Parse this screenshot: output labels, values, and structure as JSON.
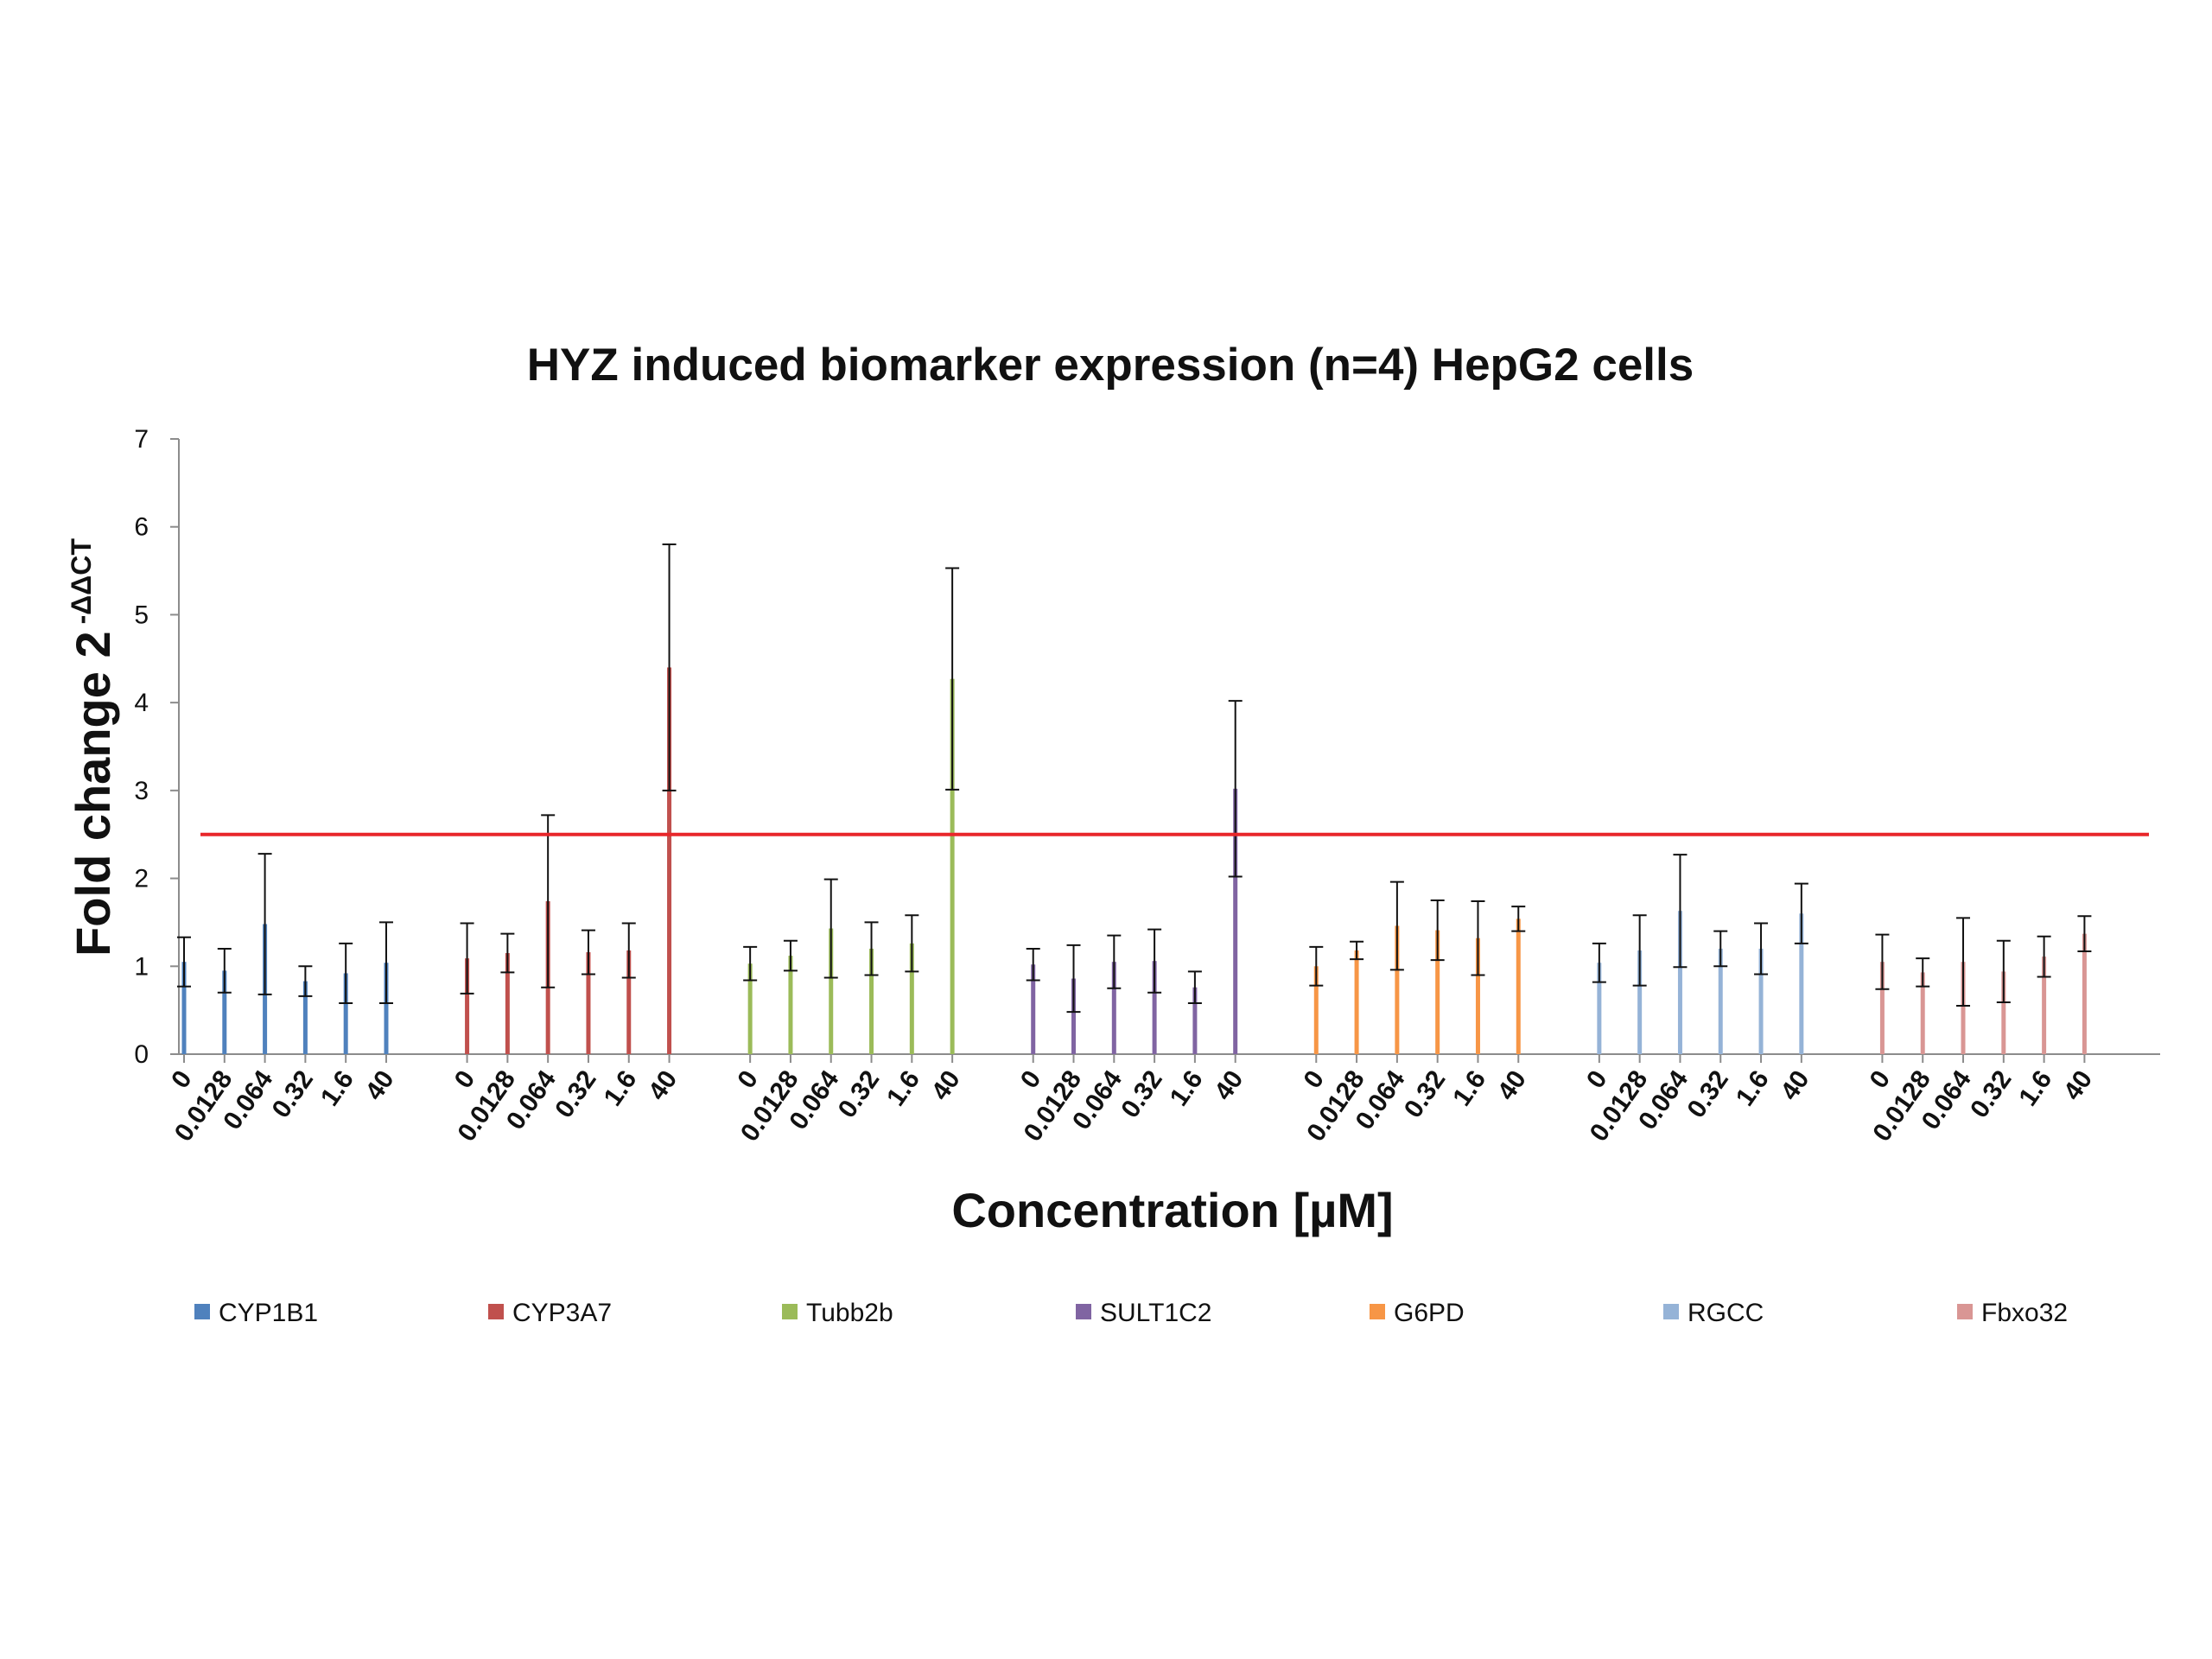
{
  "chart_data": {
    "type": "bar",
    "title": "HYZ induced biomarker expression (n=4) HepG2 cells",
    "xlabel": "Concentration [µM]",
    "ylabel_main": "Fold change 2",
    "ylabel_superscript": "-ΔΔCT",
    "ylim": [
      0,
      7
    ],
    "yticks": [
      "0",
      "1",
      "2",
      "3",
      "4",
      "5",
      "6",
      "7"
    ],
    "categories": [
      "0",
      "0.0128",
      "0.064",
      "0.32",
      "1.6",
      "40"
    ],
    "threshold": {
      "value": 2.5,
      "color": "#e8262a"
    },
    "grid": false,
    "legend_position": "bottom",
    "series": [
      {
        "name": "CYP1B1",
        "color": "#4f81bd",
        "values": [
          1.05,
          0.95,
          1.48,
          0.83,
          0.92,
          1.04
        ],
        "errors": [
          0.28,
          0.25,
          0.8,
          0.17,
          0.34,
          0.46
        ]
      },
      {
        "name": "CYP3A7",
        "color": "#c0504d",
        "values": [
          1.09,
          1.15,
          1.74,
          1.16,
          1.18,
          4.4
        ],
        "errors": [
          0.4,
          0.22,
          0.98,
          0.25,
          0.31,
          1.4
        ]
      },
      {
        "name": "Tubb2b",
        "color": "#9bbb59",
        "values": [
          1.03,
          1.12,
          1.43,
          1.2,
          1.26,
          4.27
        ],
        "errors": [
          0.19,
          0.17,
          0.56,
          0.3,
          0.32,
          1.26
        ]
      },
      {
        "name": "SULT1C2",
        "color": "#8064a2",
        "values": [
          1.02,
          0.86,
          1.05,
          1.06,
          0.76,
          3.02
        ],
        "errors": [
          0.18,
          0.38,
          0.3,
          0.36,
          0.18,
          1.0
        ]
      },
      {
        "name": "G6PD",
        "color": "#f79646",
        "values": [
          1.0,
          1.18,
          1.46,
          1.41,
          1.32,
          1.54
        ],
        "errors": [
          0.22,
          0.1,
          0.5,
          0.34,
          0.42,
          0.14
        ]
      },
      {
        "name": "RGCC",
        "color": "#95b3d7",
        "values": [
          1.04,
          1.18,
          1.63,
          1.2,
          1.2,
          1.6
        ],
        "errors": [
          0.22,
          0.4,
          0.64,
          0.2,
          0.29,
          0.34
        ]
      },
      {
        "name": "Fbxo32",
        "color": "#d99694",
        "values": [
          1.05,
          0.93,
          1.05,
          0.94,
          1.11,
          1.37
        ],
        "errors": [
          0.31,
          0.16,
          0.5,
          0.35,
          0.23,
          0.2
        ]
      }
    ]
  }
}
